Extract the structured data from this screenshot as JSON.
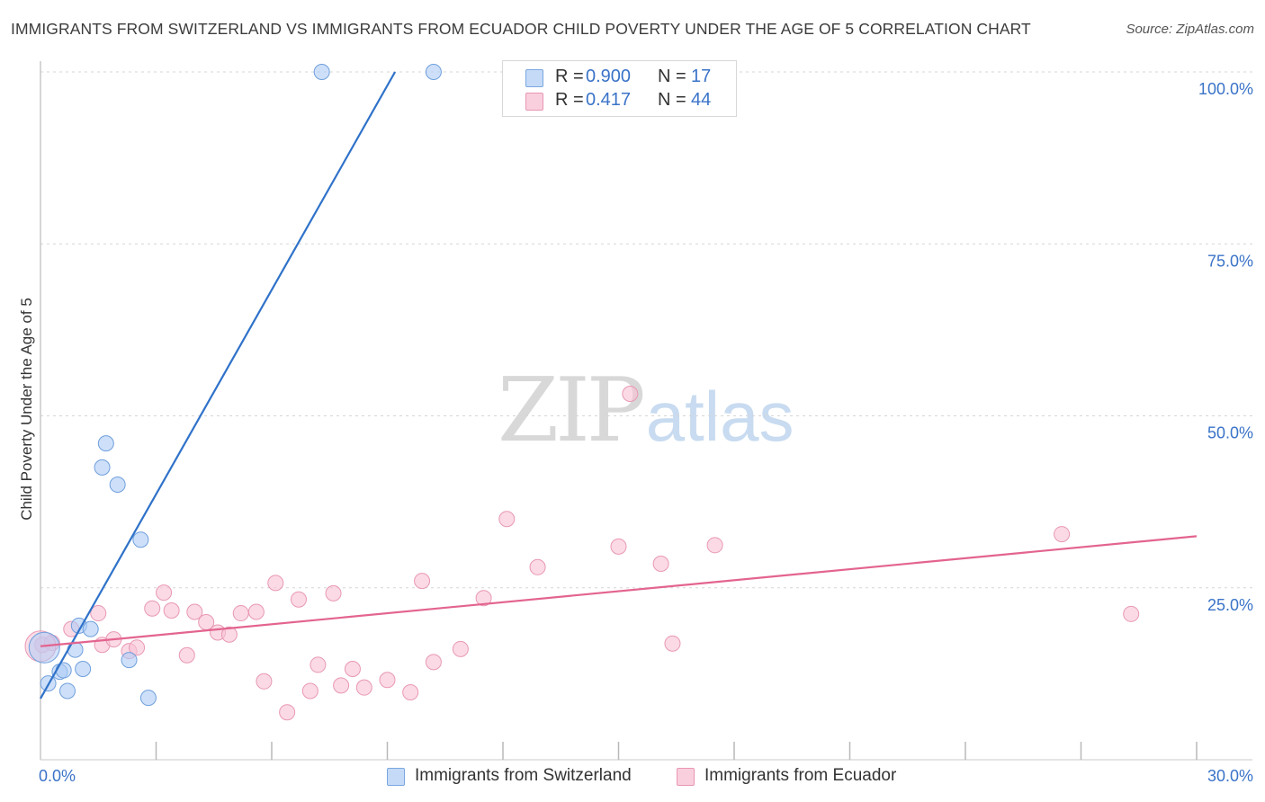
{
  "title": "IMMIGRANTS FROM SWITZERLAND VS IMMIGRANTS FROM ECUADOR CHILD POVERTY UNDER THE AGE OF 5 CORRELATION CHART",
  "source": "Source: ZipAtlas.com",
  "watermark": {
    "zip": "ZIP",
    "atlas": "atlas"
  },
  "legend": {
    "rows": [
      {
        "r_label": "R =",
        "r_value": "0.900",
        "n_label": "N =",
        "n_value": "17",
        "color": "#aecbf5",
        "border": "#7aa7e0"
      },
      {
        "r_label": "R =",
        "r_value": "0.417",
        "n_label": "N =",
        "n_value": "44",
        "color": "#f8c2d3",
        "border": "#e996b4"
      }
    ]
  },
  "chart_data": {
    "type": "scatter",
    "title": "IMMIGRANTS FROM SWITZERLAND VS IMMIGRANTS FROM ECUADOR CHILD POVERTY UNDER THE AGE OF 5 CORRELATION CHART",
    "xlabel": "",
    "ylabel": "Child Poverty Under the Age of 5",
    "xlim": [
      0,
      30
    ],
    "ylim": [
      0,
      100
    ],
    "x_tick_labels": [
      "0.0%",
      "30.0%"
    ],
    "y_tick_labels": [
      "25.0%",
      "50.0%",
      "75.0%",
      "100.0%"
    ],
    "y_ticks": [
      25,
      50,
      75,
      100
    ],
    "grid": true,
    "series": [
      {
        "name": "Immigrants from Switzerland",
        "color": "#aecbf5",
        "edge": "#6f9fdc",
        "line_color": "#2f72c9",
        "trend": [
          [
            0,
            8.9
          ],
          [
            9.2,
            100
          ]
        ],
        "points": [
          [
            0.1,
            16.3
          ],
          [
            0.2,
            11.1
          ],
          [
            0.5,
            12.8
          ],
          [
            0.6,
            13.0
          ],
          [
            0.7,
            10.0
          ],
          [
            0.9,
            16.0
          ],
          [
            1.0,
            19.5
          ],
          [
            1.1,
            13.2
          ],
          [
            1.3,
            19.0
          ],
          [
            1.6,
            42.5
          ],
          [
            1.7,
            46.0
          ],
          [
            2.0,
            40.0
          ],
          [
            2.3,
            14.5
          ],
          [
            2.6,
            32.0
          ],
          [
            2.8,
            9.0
          ],
          [
            7.3,
            100.0
          ],
          [
            10.2,
            100.0
          ]
        ]
      },
      {
        "name": "Immigrants from Ecuador",
        "color": "#f8c2d3",
        "edge": "#e898b4",
        "line_color": "#e3648f",
        "trend": [
          [
            0,
            16.5
          ],
          [
            30,
            32.5
          ]
        ],
        "points": [
          [
            0.05,
            16.7
          ],
          [
            0.3,
            17.0
          ],
          [
            0.8,
            19.0
          ],
          [
            1.5,
            21.3
          ],
          [
            1.6,
            16.7
          ],
          [
            1.9,
            17.5
          ],
          [
            2.3,
            15.8
          ],
          [
            2.5,
            16.3
          ],
          [
            2.9,
            22.0
          ],
          [
            3.2,
            24.3
          ],
          [
            3.4,
            21.7
          ],
          [
            3.8,
            15.2
          ],
          [
            4.0,
            21.5
          ],
          [
            4.3,
            20.0
          ],
          [
            4.6,
            18.5
          ],
          [
            4.9,
            18.2
          ],
          [
            5.2,
            21.3
          ],
          [
            5.6,
            21.5
          ],
          [
            5.8,
            11.4
          ],
          [
            6.1,
            25.7
          ],
          [
            6.4,
            6.9
          ],
          [
            6.7,
            23.3
          ],
          [
            7.0,
            10.0
          ],
          [
            7.2,
            13.8
          ],
          [
            7.6,
            24.2
          ],
          [
            7.8,
            10.8
          ],
          [
            8.1,
            13.2
          ],
          [
            8.4,
            10.5
          ],
          [
            9.0,
            11.6
          ],
          [
            9.6,
            9.8
          ],
          [
            9.9,
            26.0
          ],
          [
            10.2,
            14.2
          ],
          [
            10.9,
            16.1
          ],
          [
            11.5,
            23.5
          ],
          [
            12.1,
            35.0
          ],
          [
            12.9,
            28.0
          ],
          [
            15.0,
            31.0
          ],
          [
            15.3,
            53.2
          ],
          [
            16.1,
            28.5
          ],
          [
            16.4,
            16.9
          ],
          [
            17.5,
            31.2
          ],
          [
            26.5,
            32.8
          ],
          [
            28.3,
            21.2
          ],
          [
            0.0,
            16.5
          ]
        ]
      }
    ]
  }
}
